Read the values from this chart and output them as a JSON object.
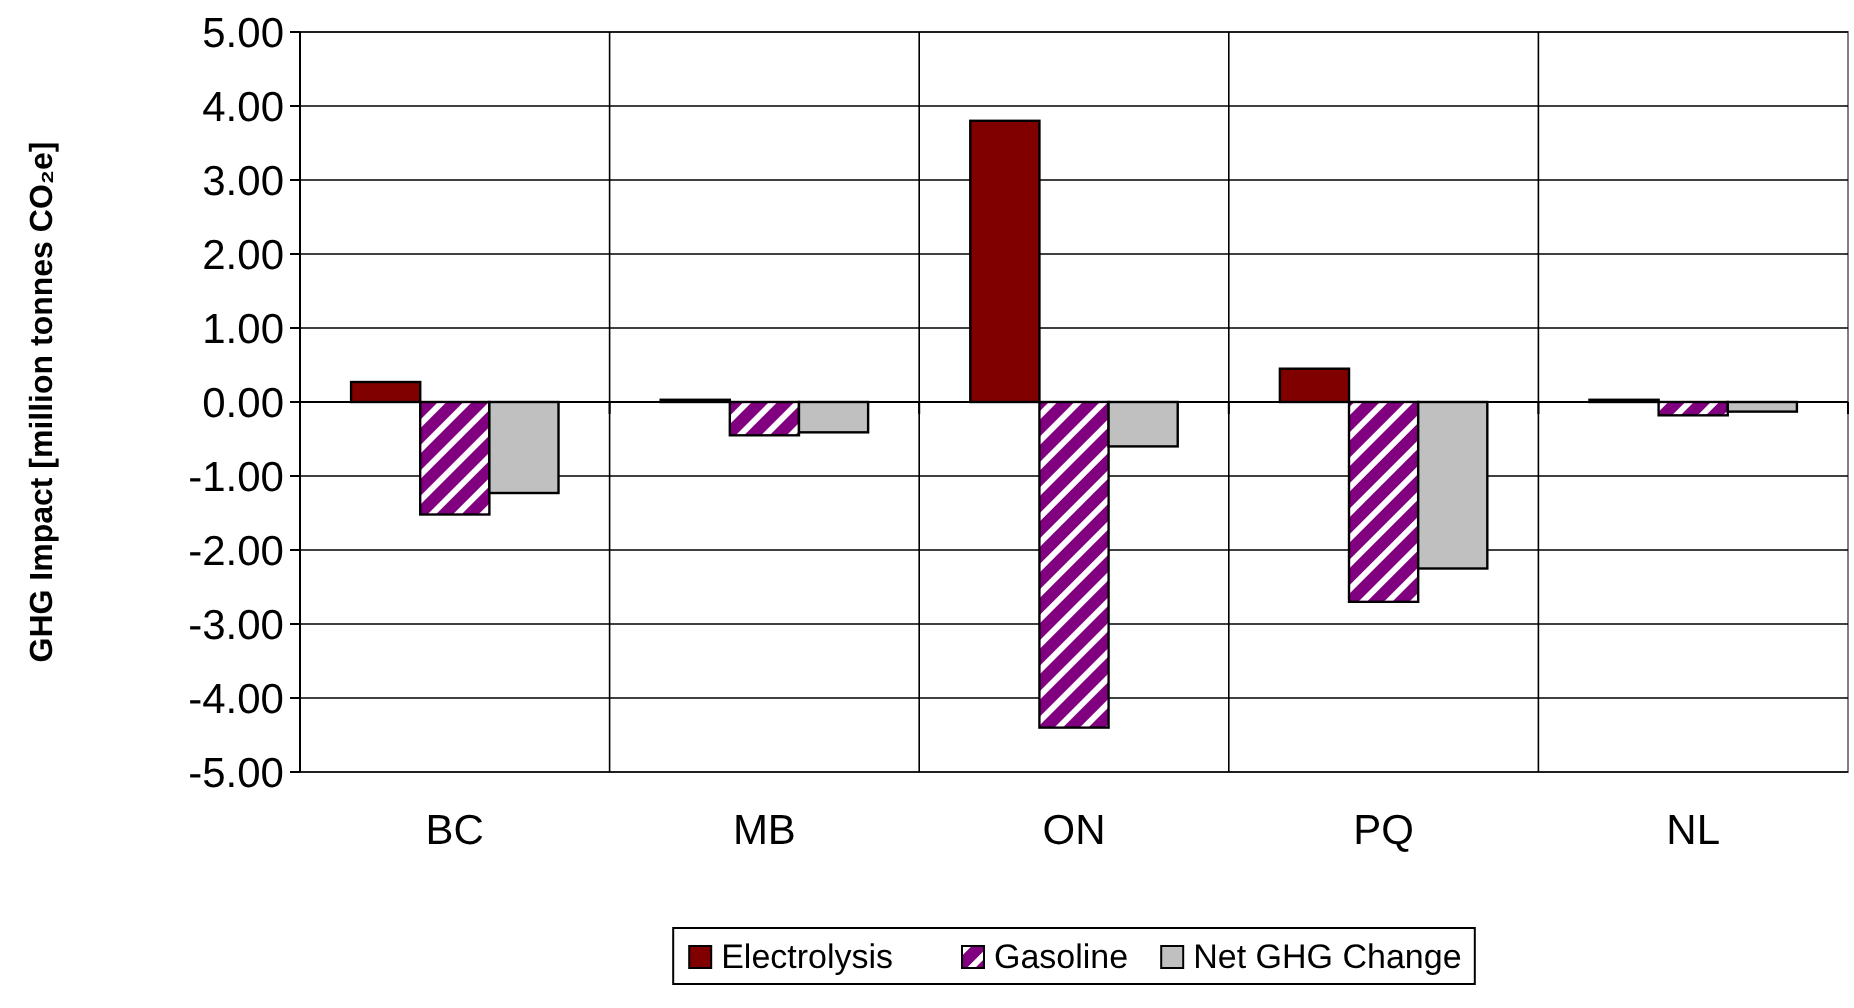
{
  "chart_data": {
    "type": "bar",
    "ylabel": "GHG Impact [million tonnes CO₂e]",
    "categories": [
      "BC",
      "MB",
      "ON",
      "PQ",
      "NL"
    ],
    "series": [
      {
        "name": "Electrolysis",
        "color": "#800000",
        "values": [
          0.27,
          0.03,
          3.8,
          0.45,
          0.03
        ]
      },
      {
        "name": "Gasoline",
        "color": "#800080",
        "values": [
          -1.52,
          -0.45,
          -4.4,
          -2.7,
          -0.18
        ]
      },
      {
        "name": "Net GHG Change",
        "color": "#c0c0c0",
        "values": [
          -1.23,
          -0.41,
          -0.6,
          -2.25,
          -0.13
        ]
      }
    ],
    "ylim": [
      -5,
      5
    ],
    "yticks": [
      {
        "value": 5,
        "label": "5.00"
      },
      {
        "value": 4,
        "label": "4.00"
      },
      {
        "value": 3,
        "label": "3.00"
      },
      {
        "value": 2,
        "label": "2.00"
      },
      {
        "value": 1,
        "label": "1.00"
      },
      {
        "value": 0,
        "label": "0.00"
      },
      {
        "value": -1,
        "label": "-1.00"
      },
      {
        "value": -2,
        "label": "-2.00"
      },
      {
        "value": -3,
        "label": "-3.00"
      },
      {
        "value": -4,
        "label": "-4.00"
      },
      {
        "value": -5,
        "label": "-5.00"
      }
    ],
    "grid": true,
    "legend": "bottom"
  }
}
